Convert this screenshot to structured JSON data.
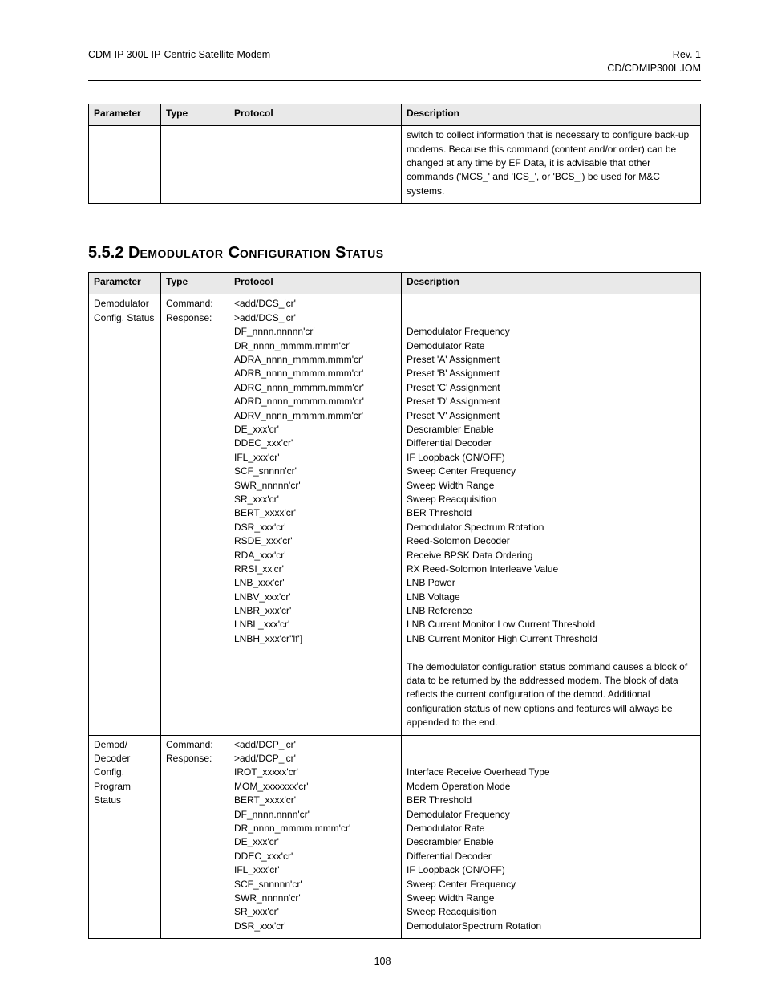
{
  "header": {
    "left": "CDM-IP 300L IP-Centric Satellite Modem",
    "right_line1": "Rev. 1",
    "right_line2": "CD/CDMIP300L.IOM"
  },
  "table1": {
    "columns": [
      "Parameter",
      "Type",
      "Protocol",
      "Description"
    ],
    "row": {
      "parameter": "",
      "type": "",
      "protocol": "",
      "description": "switch to collect information that is necessary to configure back-up modems. Because this command (content and/or order) can be changed at any time by EF Data, it is advisable that other commands ('MCS_' and 'ICS_', or 'BCS_') be used for M&C systems."
    }
  },
  "section": {
    "number": "5.5.2",
    "title_a": "D",
    "title_b": "emodulator ",
    "title_c": "C",
    "title_d": "onfiguration ",
    "title_e": "S",
    "title_f": "tatus"
  },
  "table2": {
    "columns": [
      "Parameter",
      "Type",
      "Protocol",
      "Description"
    ],
    "rows": [
      {
        "parameter": "Demodulator Config. Status",
        "type": "Command:\nResponse:",
        "protocol": "<add/DCS_'cr'\n>add/DCS_'cr'\nDF_nnnn.nnnnn'cr'\nDR_nnnn_mmmm.mmm'cr'\nADRA_nnnn_mmmm.mmm'cr'\nADRB_nnnn_mmmm.mmm'cr'\nADRC_nnnn_mmmm.mmm'cr'\nADRD_nnnn_mmmm.mmm'cr'\nADRV_nnnn_mmmm.mmm'cr'\nDE_xxx'cr'\nDDEC_xxx'cr'\nIFL_xxx'cr'\nSCF_snnnn'cr'\nSWR_nnnnn'cr'\nSR_xxx'cr'\nBERT_xxxx'cr'\nDSR_xxx'cr'\nRSDE_xxx'cr'\nRDA_xxx'cr'\nRRSI_xx'cr'\nLNB_xxx'cr'\nLNBV_xxx'cr'\nLNBR_xxx'cr'\nLNBL_xxx'cr'\nLNBH_xxx'cr''lf']",
        "description": "\n\nDemodulator Frequency\nDemodulator Rate\nPreset 'A' Assignment\nPreset 'B' Assignment\nPreset 'C' Assignment\nPreset 'D' Assignment\nPreset 'V' Assignment\nDescrambler Enable\nDifferential Decoder\nIF Loopback (ON/OFF)\nSweep Center Frequency\nSweep Width Range\nSweep Reacquisition\nBER Threshold\nDemodulator  Spectrum Rotation\nReed-Solomon Decoder\nReceive BPSK Data Ordering\nRX Reed-Solomon Interleave Value\nLNB Power\nLNB Voltage\nLNB Reference\nLNB Current  Monitor Low Current Threshold\nLNB Current  Monitor High Current  Threshold\n\nThe demodulator configuration status command causes a block of data to be returned by the addressed modem. The block of data reflects the current configuration of the demod. Additional configuration status of new options and features will always be appended to the end.\n "
      },
      {
        "parameter": "Demod/\nDecoder Config. Program Status",
        "type": "Command:\nResponse:",
        "protocol": "<add/DCP_'cr'\n>add/DCP_'cr'\nIROT_xxxxx'cr'\nMOM_xxxxxxx'cr'\nBERT_xxxx'cr'\nDF_nnnn.nnnn'cr'\nDR_nnnn_mmmm.mmm'cr'\nDE_xxx'cr'\nDDEC_xxx'cr'\nIFL_xxx'cr'\nSCF_snnnnn'cr'\nSWR_nnnnn'cr'\nSR_xxx'cr'\nDSR_xxx'cr'",
        "description": "\n\nInterface Receive Overhead Type\nModem Operation Mode\nBER Threshold\nDemodulator Frequency\nDemodulator Rate\nDescrambler Enable\nDifferential Decoder\nIF Loopback (ON/OFF)\nSweep Center Frequency\nSweep Width Range\nSweep Reacquisition\nDemodulatorSpectrum Rotation"
      }
    ]
  },
  "page_number": "108"
}
